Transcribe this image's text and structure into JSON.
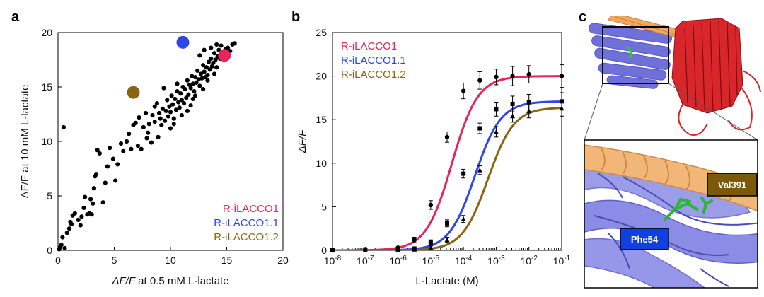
{
  "panel_labels": [
    "a",
    "b",
    "c"
  ],
  "colors": {
    "r_ilacco1": "#e8245c",
    "r_ilacco1_1": "#2e46e6",
    "r_ilacco1_2": "#8a6410",
    "points": "#000000",
    "helix_orange": "#f0a860",
    "helix_blue": "#6f70d8",
    "barrel_red": "#d8262a",
    "stick_green": "#2ecc2e"
  },
  "chart_data": [
    {
      "type": "scatter",
      "panel": "a",
      "xlabel_prefix": "ΔF/F",
      "xlabel_suffix": " at 0.5 mM L-lactate",
      "ylabel": "ΔF/F at 10 mM L-lactate",
      "xlim": [
        0,
        20
      ],
      "ylim": [
        0,
        20
      ],
      "xticks": [
        "0",
        "5",
        "10",
        "15",
        "20"
      ],
      "yticks": [
        "0",
        "5",
        "10",
        "15",
        "20"
      ],
      "variants": [
        {
          "name": "R-iLACCO1",
          "x": 14.8,
          "y": 17.9,
          "color": "#e8245c"
        },
        {
          "name": "R-iLACCO1.1",
          "x": 11.1,
          "y": 19.1,
          "color": "#2e46e6"
        },
        {
          "name": "R-iLACCO1.2",
          "x": 6.7,
          "y": 14.5,
          "color": "#8a6410"
        }
      ],
      "points": [
        [
          0.1,
          0.1
        ],
        [
          0.2,
          0.3
        ],
        [
          0.3,
          0.5
        ],
        [
          0.4,
          1.2
        ],
        [
          0.5,
          11.3
        ],
        [
          0.6,
          0.2
        ],
        [
          0.8,
          1.6
        ],
        [
          1.0,
          2.0
        ],
        [
          1.1,
          2.6
        ],
        [
          1.2,
          2.4
        ],
        [
          1.3,
          3.2
        ],
        [
          1.5,
          3.4
        ],
        [
          1.8,
          2.8
        ],
        [
          2.0,
          2.3
        ],
        [
          2.1,
          3.1
        ],
        [
          2.3,
          3.9
        ],
        [
          2.4,
          4.9
        ],
        [
          2.6,
          3.3
        ],
        [
          2.8,
          3.4
        ],
        [
          2.9,
          4.7
        ],
        [
          3.0,
          3.3
        ],
        [
          3.1,
          4.3
        ],
        [
          3.2,
          5.7
        ],
        [
          3.3,
          6.8
        ],
        [
          3.4,
          7.0
        ],
        [
          3.5,
          9.2
        ],
        [
          3.7,
          8.9
        ],
        [
          4.0,
          4.4
        ],
        [
          4.2,
          6.2
        ],
        [
          4.4,
          7.7
        ],
        [
          4.6,
          9.4
        ],
        [
          4.9,
          8.4
        ],
        [
          5.1,
          6.4
        ],
        [
          5.3,
          7.9
        ],
        [
          5.6,
          9.8
        ],
        [
          5.8,
          9.1
        ],
        [
          6.1,
          10.0
        ],
        [
          6.3,
          10.7
        ],
        [
          6.5,
          9.3
        ],
        [
          6.7,
          11.5
        ],
        [
          6.9,
          11.7
        ],
        [
          7.1,
          9.6
        ],
        [
          7.2,
          12.2
        ],
        [
          7.4,
          9.3
        ],
        [
          7.6,
          11.3
        ],
        [
          7.8,
          12.6
        ],
        [
          8.0,
          10.8
        ],
        [
          8.1,
          11.6
        ],
        [
          8.3,
          9.9
        ],
        [
          8.4,
          12.4
        ],
        [
          8.6,
          11.8
        ],
        [
          8.8,
          13.5
        ],
        [
          9.0,
          12.6
        ],
        [
          9.1,
          12.1
        ],
        [
          9.3,
          13.0
        ],
        [
          9.5,
          11.9
        ],
        [
          9.6,
          12.8
        ],
        [
          9.7,
          13.8
        ],
        [
          9.8,
          12.3
        ],
        [
          9.9,
          13.2
        ],
        [
          10.0,
          12.7
        ],
        [
          10.1,
          14.2
        ],
        [
          10.2,
          13.4
        ],
        [
          10.3,
          12.1
        ],
        [
          10.4,
          13.9
        ],
        [
          10.5,
          12.9
        ],
        [
          10.6,
          14.6
        ],
        [
          10.7,
          13.6
        ],
        [
          10.8,
          13.1
        ],
        [
          10.9,
          14.4
        ],
        [
          11.0,
          13.8
        ],
        [
          11.1,
          15.0
        ],
        [
          11.2,
          13.5
        ],
        [
          11.3,
          14.8
        ],
        [
          11.4,
          14.0
        ],
        [
          11.5,
          15.6
        ],
        [
          11.6,
          14.3
        ],
        [
          11.7,
          15.2
        ],
        [
          11.8,
          14.9
        ],
        [
          11.9,
          16.0
        ],
        [
          12.0,
          15.3
        ],
        [
          12.1,
          14.6
        ],
        [
          12.2,
          15.9
        ],
        [
          12.3,
          15.4
        ],
        [
          12.4,
          16.5
        ],
        [
          12.5,
          15.7
        ],
        [
          12.6,
          15.1
        ],
        [
          12.7,
          16.2
        ],
        [
          12.8,
          15.8
        ],
        [
          12.9,
          17.0
        ],
        [
          13.0,
          16.4
        ],
        [
          13.1,
          15.9
        ],
        [
          13.2,
          16.8
        ],
        [
          13.3,
          16.1
        ],
        [
          13.4,
          17.3
        ],
        [
          13.5,
          16.6
        ],
        [
          13.6,
          17.6
        ],
        [
          13.7,
          16.9
        ],
        [
          13.8,
          17.2
        ],
        [
          13.9,
          18.1
        ],
        [
          14.0,
          17.5
        ],
        [
          14.1,
          16.8
        ],
        [
          14.2,
          17.8
        ],
        [
          14.3,
          18.4
        ],
        [
          14.4,
          17.6
        ],
        [
          14.5,
          18.8
        ],
        [
          14.7,
          18.2
        ],
        [
          14.9,
          18.5
        ],
        [
          15.1,
          18.6
        ],
        [
          15.3,
          18.3
        ],
        [
          15.5,
          18.9
        ],
        [
          15.7,
          19.0
        ],
        [
          11.5,
          12.8
        ],
        [
          12.0,
          13.9
        ],
        [
          9.4,
          14.9
        ],
        [
          10.0,
          11.2
        ],
        [
          10.6,
          15.3
        ],
        [
          8.9,
          10.4
        ],
        [
          7.9,
          10.3
        ],
        [
          12.6,
          17.9
        ],
        [
          13.0,
          18.4
        ],
        [
          13.6,
          18.6
        ],
        [
          12.2,
          14.2
        ],
        [
          11.8,
          13.3
        ],
        [
          10.3,
          11.6
        ],
        [
          9.2,
          11.5
        ],
        [
          8.6,
          13.2
        ],
        [
          13.3,
          15.6
        ],
        [
          14.1,
          18.9
        ],
        [
          13.9,
          16.2
        ],
        [
          11.0,
          12.4
        ],
        [
          12.9,
          14.8
        ]
      ],
      "legend": [
        "R-iLACCO1",
        "R-iLACCO1.1",
        "R-iLACCO1.2"
      ]
    },
    {
      "type": "line",
      "panel": "b",
      "xlabel": "L-Lactate (M)",
      "ylabel": "ΔF/F",
      "xscale": "log",
      "xlim_exp": [
        -8,
        -1
      ],
      "ylim": [
        0,
        25
      ],
      "xtick_exponents": [
        "-8",
        "-7",
        "-6",
        "-5",
        "-4",
        "-3",
        "-2",
        "-1"
      ],
      "yticks": [
        "0",
        "5",
        "10",
        "15",
        "20",
        "25"
      ],
      "x_exponents": [
        -8,
        -7,
        -6,
        -5.5,
        -5,
        -4.5,
        -4,
        -3.5,
        -3,
        -2.5,
        -2,
        -1
      ],
      "series": [
        {
          "name": "R-iLACCO1",
          "color": "#e8245c",
          "marker": "circle",
          "fit": {
            "top": 20.0,
            "log_ec50": -4.35,
            "hill": 1.1
          },
          "values": [
            0.0,
            0.1,
            0.3,
            1.2,
            5.2,
            13.0,
            18.3,
            19.5,
            19.9,
            20.0,
            20.2,
            20.0
          ],
          "errors": [
            0.2,
            0.2,
            0.3,
            0.3,
            0.5,
            0.6,
            0.9,
            1.0,
            0.9,
            1.1,
            1.0,
            1.3
          ]
        },
        {
          "name": "R-iLACCO1.1",
          "color": "#2e46e6",
          "marker": "square",
          "fit": {
            "top": 17.1,
            "log_ec50": -3.65,
            "hill": 1.1
          },
          "values": [
            0.0,
            0.0,
            0.1,
            0.2,
            0.9,
            3.1,
            8.8,
            14.0,
            16.2,
            16.8,
            17.0,
            17.1
          ],
          "errors": [
            0.1,
            0.1,
            0.2,
            0.2,
            0.3,
            0.4,
            0.5,
            0.6,
            0.8,
            0.9,
            0.9,
            1.0
          ]
        },
        {
          "name": "R-iLACCO1.2",
          "color": "#8a6410",
          "marker": "triangle",
          "fit": {
            "top": 16.4,
            "log_ec50": -3.25,
            "hill": 1.1
          },
          "values": [
            0.0,
            0.0,
            0.0,
            0.1,
            0.3,
            1.2,
            3.6,
            9.2,
            13.6,
            15.4,
            16.0,
            16.3
          ],
          "errors": [
            0.1,
            0.1,
            0.1,
            0.1,
            0.2,
            0.3,
            0.4,
            0.5,
            0.6,
            0.7,
            0.8,
            0.9
          ]
        }
      ],
      "legend": [
        "R-iLACCO1",
        "R-iLACCO1.1",
        "R-iLACCO1.2"
      ]
    }
  ],
  "structure": {
    "panel": "c",
    "labels": {
      "val": "Val391",
      "phe": "Phe54"
    },
    "label_colors": {
      "val": "#7a5a08",
      "phe": "#1240e0"
    }
  }
}
